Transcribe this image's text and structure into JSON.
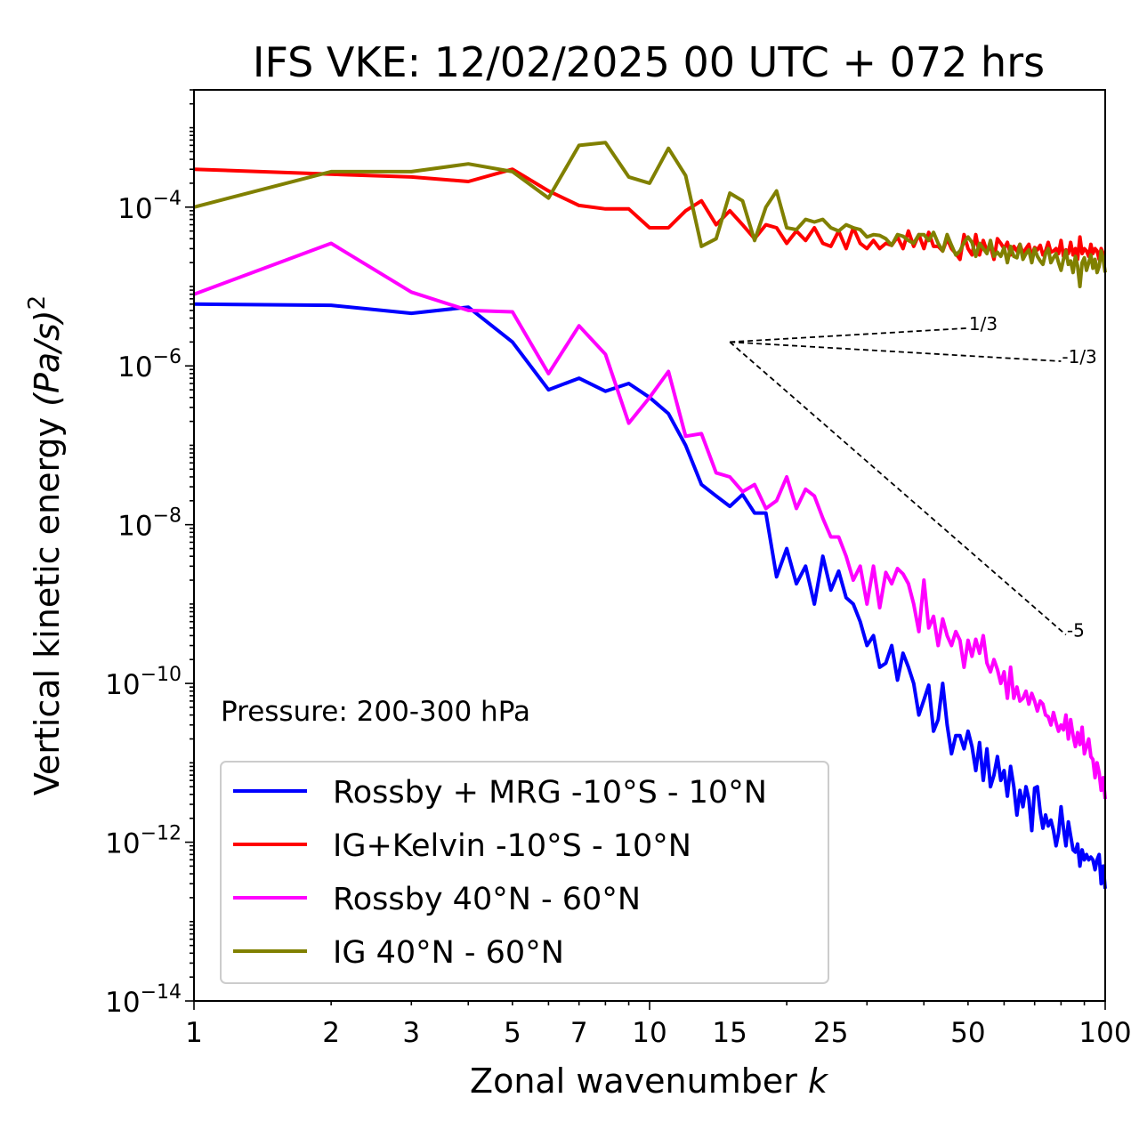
{
  "chart_data": {
    "type": "line",
    "title": "IFS VKE: 12/02/2025 00 UTC + 072 hrs",
    "xlabel": "Zonal wavenumber",
    "xlabel_var": "k",
    "ylabel": "Vertical kinetic energy",
    "ylabel_units": "(Pa/s)",
    "ylabel_exp": "2",
    "xscale": "log",
    "yscale": "log",
    "xlim": [
      1,
      100
    ],
    "ylim": [
      1e-14,
      0.003
    ],
    "x_ticks": [
      1,
      2,
      3,
      5,
      7,
      10,
      15,
      25,
      50,
      100
    ],
    "x_tick_labels": [
      "1",
      "2",
      "3",
      "5",
      "7",
      "10",
      "15",
      "25",
      "50",
      "100"
    ],
    "y_ticks": [
      -14,
      -12,
      -10,
      -8,
      -6,
      -4
    ],
    "y_tick_base": "10",
    "y_tick_exps": [
      "−14",
      "−12",
      "−10",
      "−8",
      "−6",
      "−4"
    ],
    "annotation": "Pressure: 200-300 hPa",
    "legend_position": "lower-left",
    "series": [
      {
        "name": "Rossby + MRG -10°S - 10°N",
        "color": "#0000ff",
        "x": [
          1,
          2,
          3,
          4,
          5,
          6,
          7,
          8,
          9,
          10,
          11,
          12,
          13,
          14,
          15,
          16,
          17,
          18,
          19,
          20,
          21,
          22,
          23,
          24,
          25,
          26,
          27,
          28,
          29,
          30,
          31,
          32,
          33,
          34,
          35,
          36,
          37,
          38,
          39,
          40,
          41,
          42,
          43,
          44,
          45,
          46,
          47,
          48,
          49,
          50,
          51,
          52,
          53,
          54,
          55,
          56,
          57,
          58,
          59,
          60,
          61,
          62,
          63,
          64,
          65,
          66,
          67,
          68,
          69,
          70,
          71,
          72,
          73,
          74,
          75,
          76,
          77,
          78,
          79,
          80,
          81,
          82,
          83,
          84,
          85,
          86,
          87,
          88,
          89,
          90,
          91,
          92,
          93,
          94,
          95,
          96,
          97,
          98,
          99,
          100
        ],
        "y": [
          6e-06,
          5.8e-06,
          4.6e-06,
          5.5e-06,
          2e-06,
          5e-07,
          7e-07,
          4.8e-07,
          6e-07,
          4e-07,
          2.5e-07,
          1e-07,
          3.2e-08,
          2.3e-08,
          1.7e-08,
          2.4e-08,
          1.4e-08,
          1.4e-08,
          2.2e-09,
          5e-09,
          1.8e-09,
          3e-09,
          1e-09,
          4e-09,
          1.5e-09,
          2.6e-09,
          1.2e-09,
          1e-09,
          6e-10,
          3e-10,
          4e-10,
          1.6e-10,
          1.8e-10,
          3e-10,
          1.1e-10,
          2.4e-10,
          1.6e-10,
          1e-10,
          4e-11,
          6.2e-11,
          9.5e-11,
          2.5e-11,
          3.5e-11,
          1e-10,
          3e-11,
          1.3e-11,
          2.2e-11,
          2.2e-11,
          1.5e-11,
          2.5e-11,
          1.6e-11,
          8e-12,
          1.8e-11,
          6e-12,
          1.5e-11,
          5e-12,
          7e-12,
          1.2e-11,
          6e-12,
          8e-12,
          3.8e-12,
          9e-12,
          5e-12,
          2.2e-12,
          4.5e-12,
          2.8e-12,
          5e-12,
          3.5e-12,
          1.4e-12,
          4.8e-12,
          5e-12,
          2.4e-12,
          1.5e-12,
          2.2e-12,
          1.6e-12,
          1.9e-12,
          1.4e-12,
          9e-13,
          1.3e-12,
          2.8e-12,
          1.5e-12,
          9e-13,
          1.8e-12,
          1.2e-12,
          8e-13,
          7.5e-13,
          9.5e-13,
          5e-13,
          8e-13,
          6e-13,
          7e-13,
          6e-13,
          6.5e-13,
          6e-13,
          4.5e-13,
          6e-13,
          7e-13,
          3e-13,
          5e-13,
          2.6e-13
        ]
      },
      {
        "name": "IG+Kelvin -10°S - 10°N",
        "color": "#ff0000",
        "x": [
          1,
          2,
          3,
          4,
          5,
          6,
          7,
          8,
          9,
          10,
          11,
          12,
          13,
          14,
          15,
          16,
          17,
          18,
          19,
          20,
          21,
          22,
          23,
          24,
          25,
          26,
          27,
          28,
          29,
          30,
          31,
          32,
          33,
          34,
          35,
          36,
          37,
          38,
          39,
          40,
          41,
          42,
          43,
          44,
          45,
          46,
          47,
          48,
          49,
          50,
          51,
          52,
          53,
          54,
          55,
          56,
          57,
          58,
          59,
          60,
          61,
          62,
          63,
          64,
          65,
          66,
          67,
          68,
          69,
          70,
          71,
          72,
          73,
          74,
          75,
          76,
          77,
          78,
          79,
          80,
          81,
          82,
          83,
          84,
          85,
          86,
          87,
          88,
          89,
          90,
          91,
          92,
          93,
          94,
          95,
          96,
          97,
          98,
          99,
          100
        ],
        "y": [
          0.0003,
          0.00026,
          0.00024,
          0.00021,
          0.0003,
          0.00016,
          0.000105,
          9.5e-05,
          9.5e-05,
          5.5e-05,
          5.5e-05,
          9e-05,
          0.00012,
          6e-05,
          9e-05,
          6e-05,
          4e-05,
          6e-05,
          5.5e-05,
          3.5e-05,
          5e-05,
          3.8e-05,
          5.5e-05,
          3.5e-05,
          3.2e-05,
          5e-05,
          3e-05,
          5.5e-05,
          3.5e-05,
          3e-05,
          3.8e-05,
          3e-05,
          3.5e-05,
          3.3e-05,
          4.2e-05,
          3e-05,
          5e-05,
          3.2e-05,
          4.5e-05,
          3e-05,
          4.8e-05,
          3.2e-05,
          3.2e-05,
          2.8e-05,
          4e-05,
          3e-05,
          2.6e-05,
          2.2e-05,
          4.5e-05,
          3e-05,
          2.5e-05,
          4.5e-05,
          2.5e-05,
          3.8e-05,
          2.8e-05,
          3.2e-05,
          2.2e-05,
          4e-05,
          3.5e-05,
          3e-05,
          3.6e-05,
          2.5e-05,
          3.2e-05,
          2.8e-05,
          3.4e-05,
          2.6e-05,
          3e-05,
          3.4e-05,
          2.4e-05,
          3.1e-05,
          2.9e-05,
          3.3e-05,
          2.5e-05,
          2.8e-05,
          3.6e-05,
          2.7e-05,
          2.8e-05,
          3e-05,
          2.6e-05,
          3.8e-05,
          2.4e-05,
          2.9e-05,
          2.6e-05,
          3.6e-05,
          2.5e-05,
          3e-05,
          2.2e-05,
          4.2e-05,
          2.6e-05,
          3e-05,
          2.8e-05,
          2.4e-05,
          3.4e-05,
          2.6e-05,
          3e-05,
          2.8e-05,
          2.2e-05,
          3e-05,
          2.6e-05,
          2.5e-05
        ]
      },
      {
        "name": "Rossby 40°N - 60°N",
        "color": "#ff00ff",
        "x": [
          1,
          2,
          3,
          4,
          5,
          6,
          7,
          8,
          9,
          10,
          11,
          12,
          13,
          14,
          15,
          16,
          17,
          18,
          19,
          20,
          21,
          22,
          23,
          24,
          25,
          26,
          27,
          28,
          29,
          30,
          31,
          32,
          33,
          34,
          35,
          36,
          37,
          38,
          39,
          40,
          41,
          42,
          43,
          44,
          45,
          46,
          47,
          48,
          49,
          50,
          51,
          52,
          53,
          54,
          55,
          56,
          57,
          58,
          59,
          60,
          61,
          62,
          63,
          64,
          65,
          66,
          67,
          68,
          69,
          70,
          71,
          72,
          73,
          74,
          75,
          76,
          77,
          78,
          79,
          80,
          81,
          82,
          83,
          84,
          85,
          86,
          87,
          88,
          89,
          90,
          91,
          92,
          93,
          94,
          95,
          96,
          97,
          98,
          99,
          100
        ],
        "y": [
          8e-06,
          3.5e-05,
          8.5e-06,
          5e-06,
          4.8e-06,
          8e-07,
          3.2e-06,
          1.4e-06,
          1.9e-07,
          4e-07,
          8.5e-07,
          1.3e-07,
          1.4e-07,
          4.5e-08,
          4e-08,
          2.6e-08,
          3.2e-08,
          1.6e-08,
          2e-08,
          4e-08,
          1.6e-08,
          2.8e-08,
          2.3e-08,
          1.2e-08,
          7e-09,
          7e-09,
          4e-09,
          2e-09,
          3e-09,
          1e-09,
          3e-09,
          9e-10,
          2.5e-09,
          1.8e-09,
          2.8e-09,
          2.4e-09,
          1.8e-09,
          1e-09,
          4.5e-10,
          2e-09,
          5e-10,
          7e-10,
          3e-10,
          6.5e-10,
          4e-10,
          3e-10,
          4.5e-10,
          3.5e-10,
          1.6e-10,
          3.5e-10,
          2.2e-10,
          3.6e-10,
          2.4e-10,
          4e-10,
          1.8e-10,
          1.4e-10,
          2e-10,
          1.5e-10,
          1e-10,
          1.4e-10,
          6.5e-11,
          1.6e-10,
          6.5e-11,
          9e-11,
          6e-11,
          6.5e-11,
          8e-11,
          5.5e-11,
          7.5e-11,
          6e-11,
          4.5e-11,
          6e-11,
          5.5e-11,
          4e-11,
          3.8e-11,
          3e-11,
          4.3e-11,
          3.2e-11,
          2.5e-11,
          3e-11,
          2.6e-11,
          4e-11,
          2e-11,
          3.5e-11,
          2.2e-11,
          1.6e-11,
          2.4e-11,
          1.7e-11,
          2.8e-11,
          1.3e-11,
          1.6e-11,
          2e-11,
          1.2e-11,
          1.1e-11,
          6.5e-12,
          1e-11,
          7.5e-12,
          4.5e-12,
          6.5e-12,
          3.5e-12
        ]
      },
      {
        "name": "IG 40°N - 60°N",
        "color": "#808000",
        "x": [
          1,
          2,
          3,
          4,
          5,
          6,
          7,
          8,
          9,
          10,
          11,
          12,
          13,
          14,
          15,
          16,
          17,
          18,
          19,
          20,
          21,
          22,
          23,
          24,
          25,
          26,
          27,
          28,
          29,
          30,
          31,
          32,
          33,
          34,
          35,
          36,
          37,
          38,
          39,
          40,
          41,
          42,
          43,
          44,
          45,
          46,
          47,
          48,
          49,
          50,
          51,
          52,
          53,
          54,
          55,
          56,
          57,
          58,
          59,
          60,
          61,
          62,
          63,
          64,
          65,
          66,
          67,
          68,
          69,
          70,
          71,
          72,
          73,
          74,
          75,
          76,
          77,
          78,
          79,
          80,
          81,
          82,
          83,
          84,
          85,
          86,
          87,
          88,
          89,
          90,
          91,
          92,
          93,
          94,
          95,
          96,
          97,
          98,
          99,
          100
        ],
        "y": [
          0.0001,
          0.00028,
          0.00028,
          0.00035,
          0.00028,
          0.00013,
          0.0006,
          0.00065,
          0.00024,
          0.0002,
          0.00055,
          0.00025,
          3.2e-05,
          4e-05,
          0.00015,
          0.00012,
          3.8e-05,
          0.0001,
          0.00016,
          5.5e-05,
          5.2e-05,
          7e-05,
          6.5e-05,
          7e-05,
          5.5e-05,
          5e-05,
          6e-05,
          5.5e-05,
          5.2e-05,
          4.2e-05,
          4.5e-05,
          4.4e-05,
          4e-05,
          3.3e-05,
          4.5e-05,
          4.3e-05,
          3.8e-05,
          3.5e-05,
          4.5e-05,
          4.5e-05,
          3.8e-05,
          4.8e-05,
          3.5e-05,
          2.8e-05,
          4.5e-05,
          3.3e-05,
          2.5e-05,
          2.8e-05,
          3.6e-05,
          4.2e-05,
          3.6e-05,
          2.4e-05,
          3.5e-05,
          3e-05,
          2.6e-05,
          3.8e-05,
          2.4e-05,
          2.7e-05,
          2.4e-05,
          3.1e-05,
          2e-05,
          3.2e-05,
          2.4e-05,
          2.3e-05,
          3.4e-05,
          2.2e-05,
          2.6e-05,
          2.9e-05,
          2e-05,
          3e-05,
          2.4e-05,
          2.1e-05,
          1.9e-05,
          2.6e-05,
          3e-05,
          2e-05,
          2.3e-05,
          2.6e-05,
          2e-05,
          1.6e-05,
          2.2e-05,
          2.8e-05,
          1.9e-05,
          2.1e-05,
          1.5e-05,
          2.4e-05,
          1.8e-05,
          1e-05,
          2e-05,
          2.3e-05,
          1.6e-05,
          2e-05,
          2.5e-05,
          1.7e-05,
          2.2e-05,
          1.5e-05,
          1.8e-05,
          2.8e-05,
          2.2e-05,
          1.5e-05
        ]
      }
    ],
    "slopes": [
      {
        "label": "1/3",
        "x0": 15,
        "y0": 2e-06,
        "x1": 50,
        "exp": 0.3333
      },
      {
        "label": "-1/3",
        "x0": 15,
        "y0": 2e-06,
        "x1": 80,
        "exp": -0.3333
      },
      {
        "label": "-5",
        "x0": 15,
        "y0": 2e-06,
        "x1": 82,
        "exp": -5
      }
    ]
  }
}
